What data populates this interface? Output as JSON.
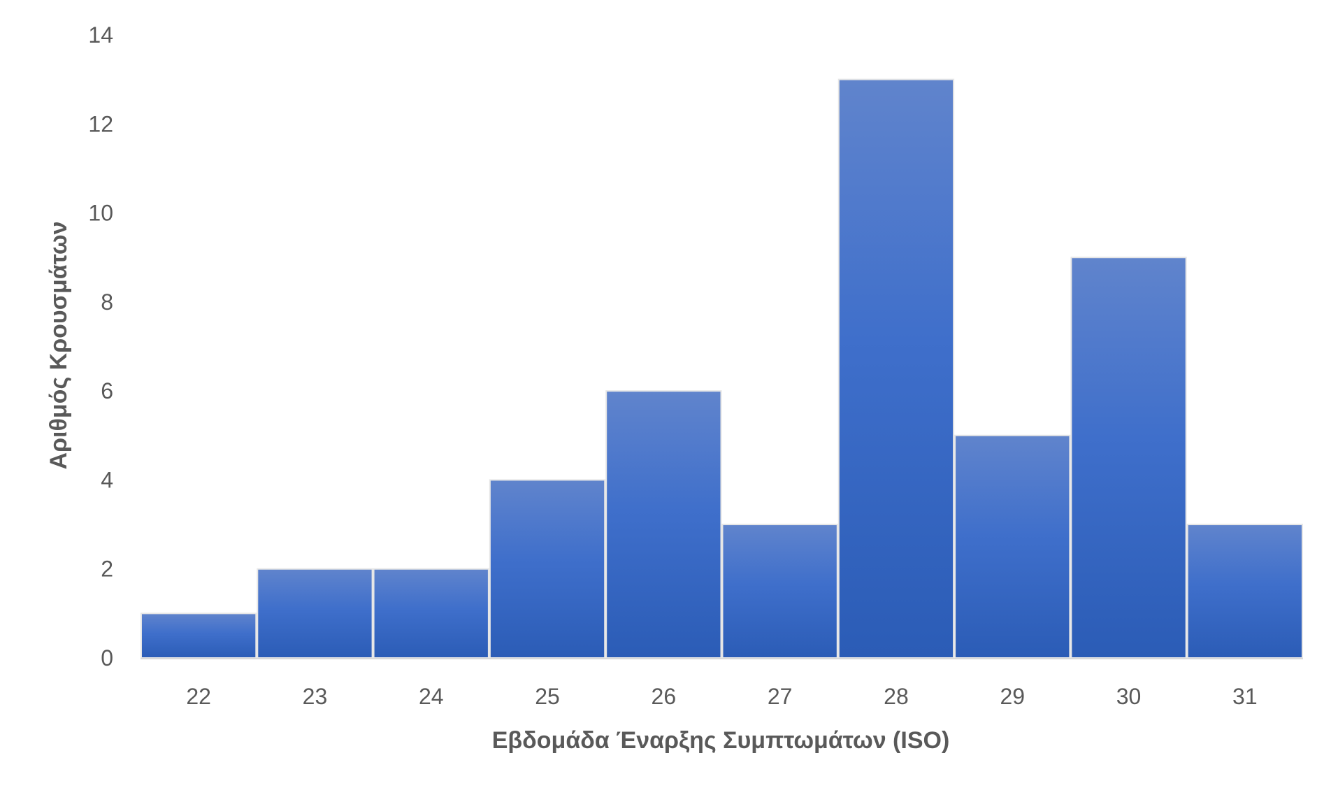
{
  "chart_data": {
    "type": "bar",
    "subtype": "histogram",
    "title": "",
    "xlabel": "Εβδομάδα Έναρξης Συμπτωμάτων (ISO)",
    "ylabel": "Αριθμός Κρουσμάτων",
    "categories": [
      "22",
      "23",
      "24",
      "25",
      "26",
      "27",
      "28",
      "29",
      "30",
      "31"
    ],
    "values": [
      1,
      2,
      2,
      4,
      6,
      3,
      13,
      5,
      9,
      3
    ],
    "ylim": [
      0,
      14
    ],
    "yticks": [
      "0",
      "2",
      "4",
      "6",
      "8",
      "10",
      "12",
      "14"
    ],
    "grid": false,
    "legend": "none",
    "colors": {
      "bar_top": "#6084cc",
      "bar_mid": "#3f6fcb",
      "bar_bottom": "#2b5cb6",
      "bar_border": "#e6e6e6",
      "axis": "#d9d9d9",
      "text": "#595959"
    }
  }
}
